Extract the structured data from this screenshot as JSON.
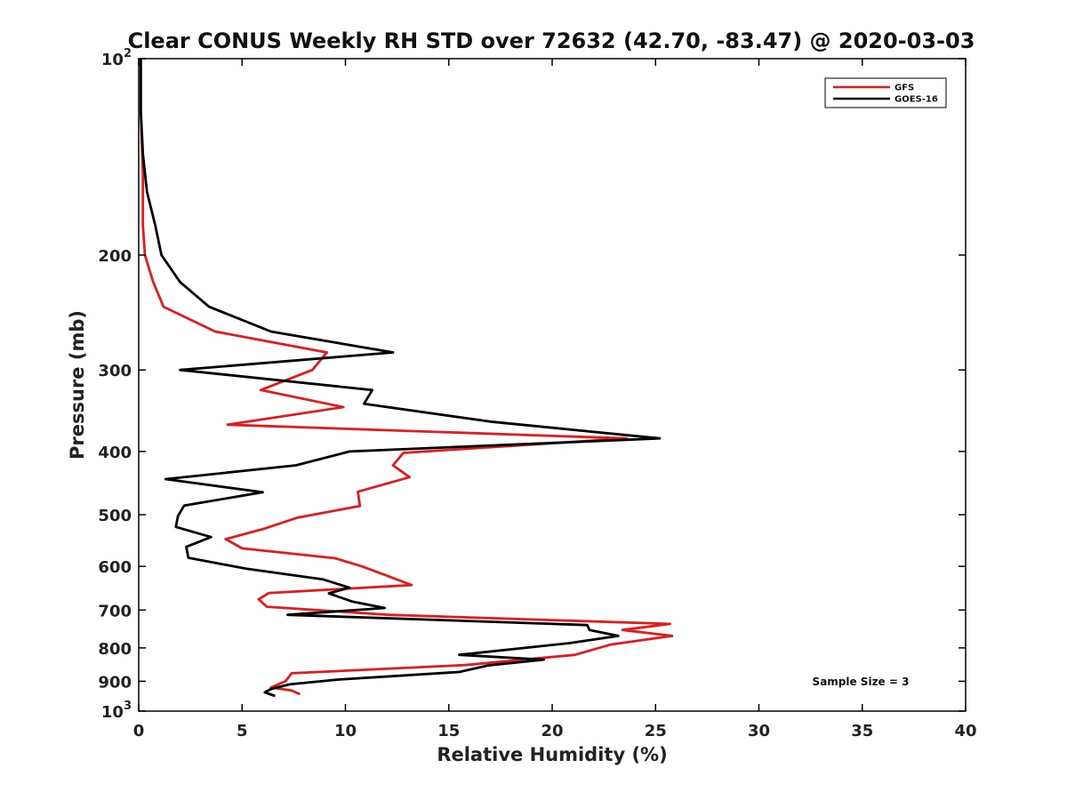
{
  "chart_data": {
    "type": "line",
    "title": "Clear CONUS Weekly RH STD over 72632 (42.70, -83.47) @ 2020-03-03",
    "xlabel": "Relative Humidity (%)",
    "ylabel": "Pressure (mb)",
    "xlim": [
      0,
      40
    ],
    "ylim": [
      100,
      1000
    ],
    "y_scale": "log",
    "y_reversed": true,
    "x_ticks": [
      0,
      5,
      10,
      15,
      20,
      25,
      30,
      35,
      40
    ],
    "y_ticks": [
      {
        "value": 100,
        "base": "10",
        "exp": "2"
      },
      {
        "value": 200,
        "label": "200"
      },
      {
        "value": 300,
        "label": "300"
      },
      {
        "value": 400,
        "label": "400"
      },
      {
        "value": 500,
        "label": "500"
      },
      {
        "value": 600,
        "label": "600"
      },
      {
        "value": 700,
        "label": "700"
      },
      {
        "value": 800,
        "label": "800"
      },
      {
        "value": 900,
        "label": "900"
      },
      {
        "value": 1000,
        "base": "10",
        "exp": "3"
      }
    ],
    "grid": false,
    "legend_position": "top-right",
    "annotation": "Sample Size = 3",
    "series": [
      {
        "name": "GFS",
        "color": "#e41a1c",
        "points": [
          [
            0.1,
            100
          ],
          [
            0.1,
            120
          ],
          [
            0.2,
            150
          ],
          [
            0.2,
            180
          ],
          [
            0.3,
            200
          ],
          [
            0.7,
            220
          ],
          [
            1.2,
            240
          ],
          [
            3.7,
            262
          ],
          [
            9.1,
            282
          ],
          [
            8.4,
            300
          ],
          [
            5.9,
            322
          ],
          [
            9.9,
            342
          ],
          [
            4.3,
            364
          ],
          [
            23.6,
            382
          ],
          [
            12.8,
            402
          ],
          [
            12.3,
            420
          ],
          [
            13.1,
            438
          ],
          [
            10.6,
            461
          ],
          [
            10.7,
            485
          ],
          [
            7.7,
            505
          ],
          [
            6.1,
            525
          ],
          [
            4.2,
            545
          ],
          [
            5.0,
            563
          ],
          [
            9.5,
            583
          ],
          [
            10.8,
            600
          ],
          [
            12.0,
            620
          ],
          [
            13.2,
            641
          ],
          [
            6.3,
            659
          ],
          [
            5.8,
            674
          ],
          [
            6.2,
            692
          ],
          [
            12.1,
            712
          ],
          [
            25.7,
            735
          ],
          [
            23.4,
            751
          ],
          [
            25.8,
            767
          ],
          [
            22.8,
            791
          ],
          [
            21.1,
            820
          ],
          [
            15.8,
            850
          ],
          [
            7.4,
            875
          ],
          [
            7.1,
            900
          ],
          [
            6.4,
            920
          ],
          [
            7.4,
            930
          ],
          [
            7.8,
            942
          ]
        ]
      },
      {
        "name": "GOES-16",
        "color": "#000000",
        "points": [
          [
            0.1,
            100
          ],
          [
            0.1,
            120
          ],
          [
            0.2,
            140
          ],
          [
            0.4,
            160
          ],
          [
            0.8,
            180
          ],
          [
            1.1,
            200
          ],
          [
            2.0,
            220
          ],
          [
            3.4,
            240
          ],
          [
            6.4,
            262
          ],
          [
            12.3,
            282
          ],
          [
            2.0,
            300
          ],
          [
            11.3,
            322
          ],
          [
            10.9,
            338
          ],
          [
            17.0,
            360
          ],
          [
            25.2,
            382
          ],
          [
            10.2,
            400
          ],
          [
            7.6,
            420
          ],
          [
            1.3,
            441
          ],
          [
            6.0,
            462
          ],
          [
            2.2,
            484
          ],
          [
            1.9,
            502
          ],
          [
            1.8,
            522
          ],
          [
            3.5,
            541
          ],
          [
            2.3,
            560
          ],
          [
            2.4,
            582
          ],
          [
            5.2,
            605
          ],
          [
            8.9,
            628
          ],
          [
            10.2,
            647
          ],
          [
            9.2,
            660
          ],
          [
            10.3,
            679
          ],
          [
            11.9,
            695
          ],
          [
            7.2,
            712
          ],
          [
            21.7,
            738
          ],
          [
            21.8,
            751
          ],
          [
            23.2,
            767
          ],
          [
            20.8,
            787
          ],
          [
            15.5,
            820
          ],
          [
            19.6,
            834
          ],
          [
            16.9,
            851
          ],
          [
            15.5,
            871
          ],
          [
            9.6,
            895
          ],
          [
            7.3,
            910
          ],
          [
            6.4,
            925
          ],
          [
            6.1,
            936
          ],
          [
            6.6,
            948
          ]
        ]
      }
    ]
  }
}
